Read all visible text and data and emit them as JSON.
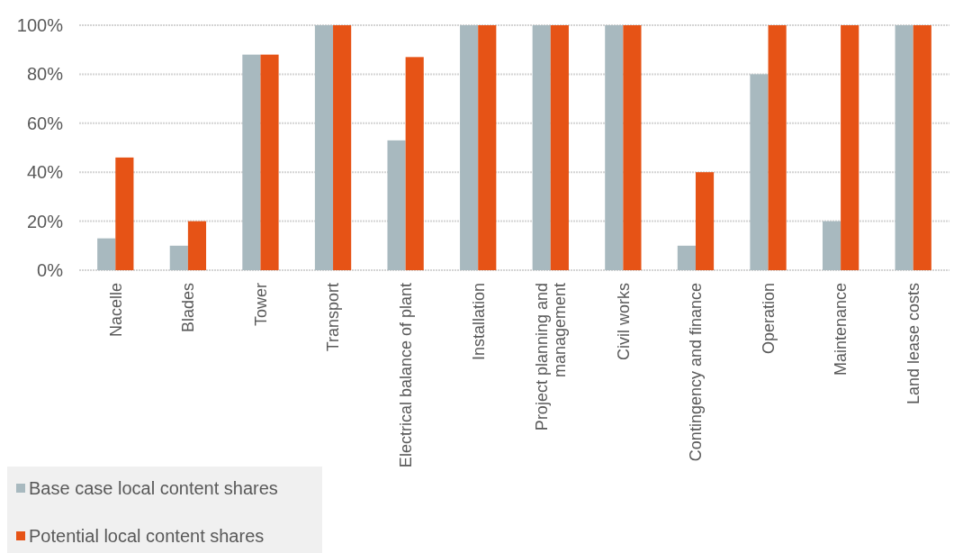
{
  "chart_data": {
    "type": "bar",
    "categories": [
      "Nacelle",
      "Blades",
      "Tower",
      "Transport",
      "Electrical balance of plant",
      "Installation",
      "Project planning and management",
      "Civil works",
      "Contingency and finance",
      "Operation",
      "Maintenance",
      "Land lease costs"
    ],
    "series": [
      {
        "name": "Base case local content shares",
        "color": "#a8b9bf",
        "values": [
          13,
          10,
          88,
          100,
          53,
          100,
          100,
          100,
          10,
          80,
          20,
          100
        ]
      },
      {
        "name": "Potential local content shares",
        "color": "#e65316",
        "values": [
          46,
          20,
          88,
          100,
          87,
          100,
          100,
          100,
          40,
          100,
          100,
          100
        ]
      }
    ],
    "ylim": [
      0,
      100
    ],
    "yticks": [
      {
        "value": 0,
        "label": "0%"
      },
      {
        "value": 20,
        "label": "20%"
      },
      {
        "value": 40,
        "label": "40%"
      },
      {
        "value": 60,
        "label": "60%"
      },
      {
        "value": 80,
        "label": "80%"
      },
      {
        "value": 100,
        "label": "100%"
      }
    ],
    "grid": "y",
    "legend": "bottom left"
  }
}
